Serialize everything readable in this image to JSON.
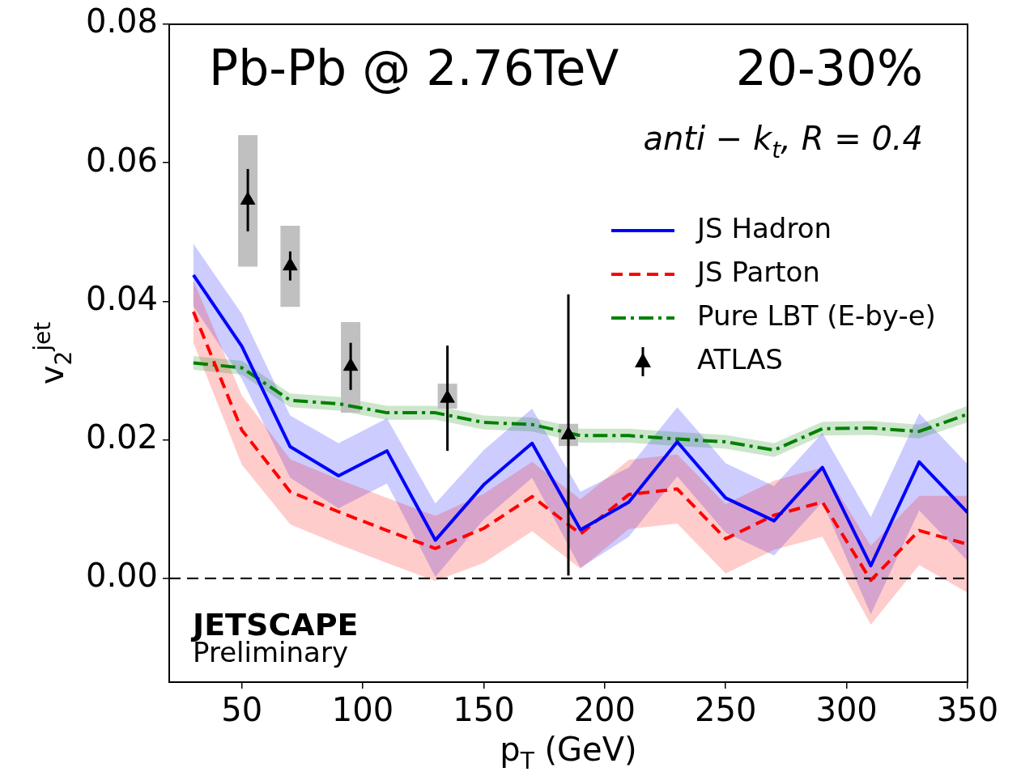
{
  "chart_data": {
    "type": "line",
    "xlabel": "p$_{T}$ (GeV)",
    "ylabel": "v$_{2}$$^{jet}$",
    "x": [
      30,
      50,
      70,
      90,
      110,
      130,
      150,
      170,
      190,
      210,
      230,
      250,
      270,
      290,
      310,
      330,
      350
    ],
    "xlim": [
      20,
      350
    ],
    "xticks": [
      50,
      100,
      150,
      200,
      250,
      300,
      350
    ],
    "ylim": [
      -0.015,
      0.08
    ],
    "yticks": [
      {
        "value": 0,
        "label": "0.00"
      },
      {
        "value": 0.02,
        "label": "0.02"
      },
      {
        "value": 0.04,
        "label": "0.04"
      },
      {
        "value": 0.06,
        "label": "0.06"
      },
      {
        "value": 0.08,
        "label": "0.08"
      }
    ],
    "grid": false,
    "legend": "right",
    "series": [
      {
        "name": "JS Hadron",
        "type": "line",
        "color": "#0000ff",
        "line_style": "solid",
        "values": [
          0.0438,
          0.0335,
          0.019,
          0.0148,
          0.0184,
          0.0055,
          0.0135,
          0.0195,
          0.007,
          0.011,
          0.0197,
          0.0116,
          0.0083,
          0.016,
          0.0018,
          0.0168,
          0.0095
        ],
        "upper": [
          0.0483,
          0.0382,
          0.0235,
          0.0195,
          0.0231,
          0.0108,
          0.0185,
          0.0245,
          0.0125,
          0.016,
          0.0247,
          0.0166,
          0.0133,
          0.021,
          0.0088,
          0.0238,
          0.0165
        ],
        "lower": [
          0.0393,
          0.0288,
          0.0145,
          0.0101,
          0.0137,
          0.0002,
          0.0085,
          0.0145,
          0.0015,
          0.006,
          0.0147,
          0.0066,
          0.0033,
          0.011,
          -0.0052,
          0.0098,
          0.0025
        ]
      },
      {
        "name": "JS Parton",
        "type": "line",
        "color": "#ff0000",
        "line_style": "dashed",
        "values": [
          0.0385,
          0.0214,
          0.0125,
          0.0096,
          0.0069,
          0.0043,
          0.0072,
          0.0118,
          0.0064,
          0.0121,
          0.0129,
          0.0057,
          0.0091,
          0.011,
          -0.0003,
          0.0069,
          0.0049
        ],
        "upper": [
          0.043,
          0.0264,
          0.0172,
          0.0143,
          0.0116,
          0.009,
          0.0122,
          0.0168,
          0.0114,
          0.0171,
          0.0179,
          0.0107,
          0.0141,
          0.016,
          0.0047,
          0.0119,
          0.0119
        ],
        "lower": [
          0.034,
          0.0164,
          0.0078,
          0.0049,
          0.0022,
          -0.0004,
          0.0022,
          0.0068,
          0.0014,
          0.0071,
          0.0079,
          0.0007,
          0.0041,
          0.006,
          -0.0067,
          0.0019,
          -0.0021
        ]
      },
      {
        "name": "Pure LBT (E-by-e)",
        "type": "line",
        "color": "#008000",
        "line_style": "dashdot",
        "values": [
          0.0311,
          0.0304,
          0.0257,
          0.0252,
          0.0239,
          0.0239,
          0.0225,
          0.0222,
          0.0206,
          0.0206,
          0.0201,
          0.0197,
          0.0185,
          0.0216,
          0.0217,
          0.0212,
          0.0237
        ],
        "upper": [
          0.0321,
          0.0314,
          0.0267,
          0.0262,
          0.0249,
          0.0249,
          0.0235,
          0.0232,
          0.0216,
          0.0216,
          0.0211,
          0.0207,
          0.0195,
          0.0226,
          0.0227,
          0.0222,
          0.0249
        ],
        "lower": [
          0.0301,
          0.0294,
          0.0247,
          0.0242,
          0.0229,
          0.0229,
          0.0215,
          0.0212,
          0.0196,
          0.0196,
          0.0191,
          0.0187,
          0.0175,
          0.0206,
          0.0207,
          0.0202,
          0.0225
        ]
      },
      {
        "type": "bar",
        "color": "#c0c0c0",
        "x": [
          52.5,
          70,
          95,
          135,
          185
        ],
        "base": [
          0.045,
          0.0392,
          0.0239,
          0.0245,
          0.0191
        ],
        "values": [
          0.019,
          0.0117,
          0.0131,
          0.0036,
          0.0032
        ]
      },
      {
        "name": "ATLAS",
        "type": "scatter",
        "marker": "triangle",
        "color": "#000000",
        "x": [
          52.5,
          70,
          95,
          135,
          185
        ],
        "values": [
          0.0546,
          0.0451,
          0.0306,
          0.026,
          0.0207
        ],
        "errors": [
          0.0045,
          0.0021,
          0.0034,
          0.0076,
          0.0203
        ]
      }
    ],
    "ref_lines": [
      {
        "axis": "y",
        "value": 0,
        "color": "#000000",
        "line_style": "dashed"
      }
    ],
    "annotations": [
      "Pb-Pb @ 2.76TeV",
      "20-30%",
      "anti − k$_{t}$, R = 0.4",
      "JETSCAPE",
      "Preliminary"
    ]
  }
}
